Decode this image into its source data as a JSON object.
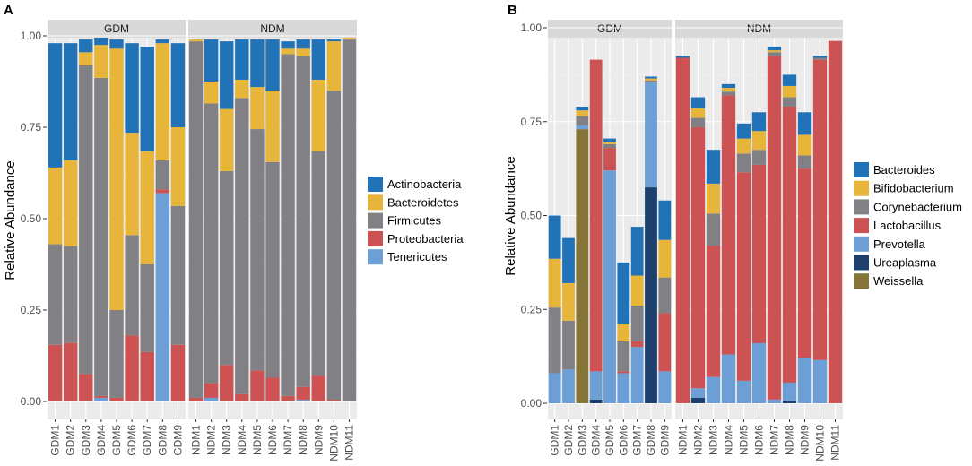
{
  "chart_data": [
    {
      "panel": "A",
      "type": "bar",
      "stacked": true,
      "ylabel": "Relative Abundance",
      "ylim": [
        0,
        1.0
      ],
      "yticks": [
        "0.00",
        "0.25",
        "0.50",
        "0.75",
        "1.00"
      ],
      "facets": [
        {
          "name": "GDM",
          "samples": [
            "GDM1",
            "GDM2",
            "GDM3",
            "GDM4",
            "GDM5",
            "GDM6",
            "GDM7",
            "GDM8",
            "GDM9"
          ]
        },
        {
          "name": "NDM",
          "samples": [
            "NDM1",
            "NDM2",
            "NDM3",
            "NDM4",
            "NDM5",
            "NDM6",
            "NDM7",
            "NDM8",
            "NDM9",
            "NDM10",
            "NDM11"
          ]
        }
      ],
      "legend": [
        {
          "name": "Actinobacteria",
          "color": "#2272b8"
        },
        {
          "name": "Bacteroidetes",
          "color": "#e8b53b"
        },
        {
          "name": "Firmicutes",
          "color": "#818185"
        },
        {
          "name": "Proteobacteria",
          "color": "#cc5254"
        },
        {
          "name": "Tenericutes",
          "color": "#6c9fd6"
        }
      ],
      "stack_order": [
        "Tenericutes",
        "Proteobacteria",
        "Firmicutes",
        "Bacteroidetes",
        "Actinobacteria"
      ],
      "values": {
        "GDM1": {
          "Tenericutes": 0.0,
          "Proteobacteria": 0.155,
          "Firmicutes": 0.275,
          "Bacteroidetes": 0.21,
          "Actinobacteria": 0.34
        },
        "GDM2": {
          "Tenericutes": 0.0,
          "Proteobacteria": 0.16,
          "Firmicutes": 0.265,
          "Bacteroidetes": 0.235,
          "Actinobacteria": 0.32
        },
        "GDM3": {
          "Tenericutes": 0.0,
          "Proteobacteria": 0.075,
          "Firmicutes": 0.845,
          "Bacteroidetes": 0.035,
          "Actinobacteria": 0.035
        },
        "GDM4": {
          "Tenericutes": 0.01,
          "Proteobacteria": 0.005,
          "Firmicutes": 0.87,
          "Bacteroidetes": 0.09,
          "Actinobacteria": 0.02
        },
        "GDM5": {
          "Tenericutes": 0.0,
          "Proteobacteria": 0.01,
          "Firmicutes": 0.24,
          "Bacteroidetes": 0.715,
          "Actinobacteria": 0.025
        },
        "GDM6": {
          "Tenericutes": 0.0,
          "Proteobacteria": 0.18,
          "Firmicutes": 0.275,
          "Bacteroidetes": 0.28,
          "Actinobacteria": 0.245
        },
        "GDM7": {
          "Tenericutes": 0.0,
          "Proteobacteria": 0.135,
          "Firmicutes": 0.24,
          "Bacteroidetes": 0.31,
          "Actinobacteria": 0.285
        },
        "GDM8": {
          "Tenericutes": 0.57,
          "Proteobacteria": 0.01,
          "Firmicutes": 0.08,
          "Bacteroidetes": 0.32,
          "Actinobacteria": 0.01
        },
        "GDM9": {
          "Tenericutes": 0.0,
          "Proteobacteria": 0.155,
          "Firmicutes": 0.38,
          "Bacteroidetes": 0.215,
          "Actinobacteria": 0.23
        },
        "NDM1": {
          "Tenericutes": 0.0,
          "Proteobacteria": 0.01,
          "Firmicutes": 0.975,
          "Bacteroidetes": 0.005,
          "Actinobacteria": 0.0
        },
        "NDM2": {
          "Tenericutes": 0.01,
          "Proteobacteria": 0.04,
          "Firmicutes": 0.765,
          "Bacteroidetes": 0.06,
          "Actinobacteria": 0.115
        },
        "NDM3": {
          "Tenericutes": 0.0,
          "Proteobacteria": 0.1,
          "Firmicutes": 0.53,
          "Bacteroidetes": 0.17,
          "Actinobacteria": 0.185
        },
        "NDM4": {
          "Tenericutes": 0.0,
          "Proteobacteria": 0.02,
          "Firmicutes": 0.81,
          "Bacteroidetes": 0.05,
          "Actinobacteria": 0.11
        },
        "NDM5": {
          "Tenericutes": 0.0,
          "Proteobacteria": 0.085,
          "Firmicutes": 0.66,
          "Bacteroidetes": 0.115,
          "Actinobacteria": 0.13
        },
        "NDM6": {
          "Tenericutes": 0.0,
          "Proteobacteria": 0.065,
          "Firmicutes": 0.59,
          "Bacteroidetes": 0.195,
          "Actinobacteria": 0.14
        },
        "NDM7": {
          "Tenericutes": 0.0,
          "Proteobacteria": 0.015,
          "Firmicutes": 0.935,
          "Bacteroidetes": 0.015,
          "Actinobacteria": 0.02
        },
        "NDM8": {
          "Tenericutes": 0.005,
          "Proteobacteria": 0.035,
          "Firmicutes": 0.905,
          "Bacteroidetes": 0.02,
          "Actinobacteria": 0.025
        },
        "NDM9": {
          "Tenericutes": 0.0,
          "Proteobacteria": 0.07,
          "Firmicutes": 0.615,
          "Bacteroidetes": 0.195,
          "Actinobacteria": 0.11
        },
        "NDM10": {
          "Tenericutes": 0.0,
          "Proteobacteria": 0.005,
          "Firmicutes": 0.845,
          "Bacteroidetes": 0.135,
          "Actinobacteria": 0.005
        },
        "NDM11": {
          "Tenericutes": 0.0,
          "Proteobacteria": 0.0,
          "Firmicutes": 0.99,
          "Bacteroidetes": 0.005,
          "Actinobacteria": 0.0
        }
      }
    },
    {
      "panel": "B",
      "type": "bar",
      "stacked": true,
      "ylabel": "Relative Abundance",
      "ylim": [
        0,
        1.0
      ],
      "yticks": [
        "0.00",
        "0.25",
        "0.50",
        "0.75",
        "1.00"
      ],
      "facets": [
        {
          "name": "GDM",
          "samples": [
            "GDM1",
            "GDM2",
            "GDM3",
            "GDM4",
            "GDM5",
            "GDM6",
            "GDM7",
            "GDM8",
            "GDM9"
          ]
        },
        {
          "name": "NDM",
          "samples": [
            "NDM1",
            "NDM2",
            "NDM3",
            "NDM4",
            "NDM5",
            "NDM6",
            "NDM7",
            "NDM8",
            "NDM9",
            "NDM10",
            "NDM11"
          ]
        }
      ],
      "legend": [
        {
          "name": "Bacteroides",
          "color": "#2272b8"
        },
        {
          "name": "Bifidobacterium",
          "color": "#e8b53b"
        },
        {
          "name": "Corynebacterium",
          "color": "#818185"
        },
        {
          "name": "Lactobacillus",
          "color": "#cc5254"
        },
        {
          "name": "Prevotella",
          "color": "#6c9fd6"
        },
        {
          "name": "Ureaplasma",
          "color": "#1d3f6e"
        },
        {
          "name": "Weissella",
          "color": "#857438"
        }
      ],
      "stack_order": [
        "Weissella",
        "Ureaplasma",
        "Prevotella",
        "Lactobacillus",
        "Corynebacterium",
        "Bifidobacterium",
        "Bacteroides"
      ],
      "values": {
        "GDM1": {
          "Weissella": 0.0,
          "Ureaplasma": 0.0,
          "Prevotella": 0.08,
          "Lactobacillus": 0.0,
          "Corynebacterium": 0.175,
          "Bifidobacterium": 0.13,
          "Bacteroides": 0.115
        },
        "GDM2": {
          "Weissella": 0.0,
          "Ureaplasma": 0.0,
          "Prevotella": 0.09,
          "Lactobacillus": 0.0,
          "Corynebacterium": 0.13,
          "Bifidobacterium": 0.1,
          "Bacteroides": 0.12
        },
        "GDM3": {
          "Weissella": 0.73,
          "Ureaplasma": 0.0,
          "Prevotella": 0.01,
          "Lactobacillus": 0.0,
          "Corynebacterium": 0.025,
          "Bifidobacterium": 0.015,
          "Bacteroides": 0.01
        },
        "GDM4": {
          "Weissella": 0.0,
          "Ureaplasma": 0.01,
          "Prevotella": 0.075,
          "Lactobacillus": 0.83,
          "Corynebacterium": 0.0,
          "Bifidobacterium": 0.0,
          "Bacteroides": 0.0
        },
        "GDM5": {
          "Weissella": 0.0,
          "Ureaplasma": 0.0,
          "Prevotella": 0.62,
          "Lactobacillus": 0.06,
          "Corynebacterium": 0.01,
          "Bifidobacterium": 0.005,
          "Bacteroides": 0.01
        },
        "GDM6": {
          "Weissella": 0.0,
          "Ureaplasma": 0.0,
          "Prevotella": 0.08,
          "Lactobacillus": 0.005,
          "Corynebacterium": 0.08,
          "Bifidobacterium": 0.045,
          "Bacteroides": 0.165
        },
        "GDM7": {
          "Weissella": 0.0,
          "Ureaplasma": 0.0,
          "Prevotella": 0.15,
          "Lactobacillus": 0.015,
          "Corynebacterium": 0.095,
          "Bifidobacterium": 0.08,
          "Bacteroides": 0.13
        },
        "GDM8": {
          "Weissella": 0.0,
          "Ureaplasma": 0.575,
          "Prevotella": 0.28,
          "Lactobacillus": 0.0,
          "Corynebacterium": 0.005,
          "Bifidobacterium": 0.005,
          "Bacteroides": 0.005
        },
        "GDM9": {
          "Weissella": 0.0,
          "Ureaplasma": 0.0,
          "Prevotella": 0.085,
          "Lactobacillus": 0.155,
          "Corynebacterium": 0.095,
          "Bifidobacterium": 0.1,
          "Bacteroides": 0.105
        },
        "NDM1": {
          "Weissella": 0.0,
          "Ureaplasma": 0.0,
          "Prevotella": 0.0,
          "Lactobacillus": 0.92,
          "Corynebacterium": 0.0,
          "Bifidobacterium": 0.0,
          "Bacteroides": 0.005
        },
        "NDM2": {
          "Weissella": 0.0,
          "Ureaplasma": 0.015,
          "Prevotella": 0.025,
          "Lactobacillus": 0.695,
          "Corynebacterium": 0.025,
          "Bifidobacterium": 0.025,
          "Bacteroides": 0.03
        },
        "NDM3": {
          "Weissella": 0.0,
          "Ureaplasma": 0.0,
          "Prevotella": 0.07,
          "Lactobacillus": 0.35,
          "Corynebacterium": 0.085,
          "Bifidobacterium": 0.08,
          "Bacteroides": 0.09
        },
        "NDM4": {
          "Weissella": 0.0,
          "Ureaplasma": 0.0,
          "Prevotella": 0.13,
          "Lactobacillus": 0.69,
          "Corynebacterium": 0.01,
          "Bifidobacterium": 0.01,
          "Bacteroides": 0.01
        },
        "NDM5": {
          "Weissella": 0.0,
          "Ureaplasma": 0.0,
          "Prevotella": 0.06,
          "Lactobacillus": 0.555,
          "Corynebacterium": 0.05,
          "Bifidobacterium": 0.04,
          "Bacteroides": 0.04
        },
        "NDM6": {
          "Weissella": 0.0,
          "Ureaplasma": 0.0,
          "Prevotella": 0.16,
          "Lactobacillus": 0.475,
          "Corynebacterium": 0.04,
          "Bifidobacterium": 0.05,
          "Bacteroides": 0.05
        },
        "NDM7": {
          "Weissella": 0.0,
          "Ureaplasma": 0.0,
          "Prevotella": 0.01,
          "Lactobacillus": 0.915,
          "Corynebacterium": 0.01,
          "Bifidobacterium": 0.005,
          "Bacteroides": 0.01
        },
        "NDM8": {
          "Weissella": 0.0,
          "Ureaplasma": 0.005,
          "Prevotella": 0.05,
          "Lactobacillus": 0.735,
          "Corynebacterium": 0.025,
          "Bifidobacterium": 0.03,
          "Bacteroides": 0.03
        },
        "NDM9": {
          "Weissella": 0.0,
          "Ureaplasma": 0.0,
          "Prevotella": 0.12,
          "Lactobacillus": 0.505,
          "Corynebacterium": 0.035,
          "Bifidobacterium": 0.055,
          "Bacteroides": 0.06
        },
        "NDM10": {
          "Weissella": 0.0,
          "Ureaplasma": 0.0,
          "Prevotella": 0.115,
          "Lactobacillus": 0.8,
          "Corynebacterium": 0.005,
          "Bifidobacterium": 0.0,
          "Bacteroides": 0.005
        },
        "NDM11": {
          "Weissella": 0.0,
          "Ureaplasma": 0.0,
          "Prevotella": 0.0,
          "Lactobacillus": 0.965,
          "Corynebacterium": 0.0,
          "Bifidobacterium": 0.0,
          "Bacteroides": 0.0
        }
      }
    }
  ]
}
